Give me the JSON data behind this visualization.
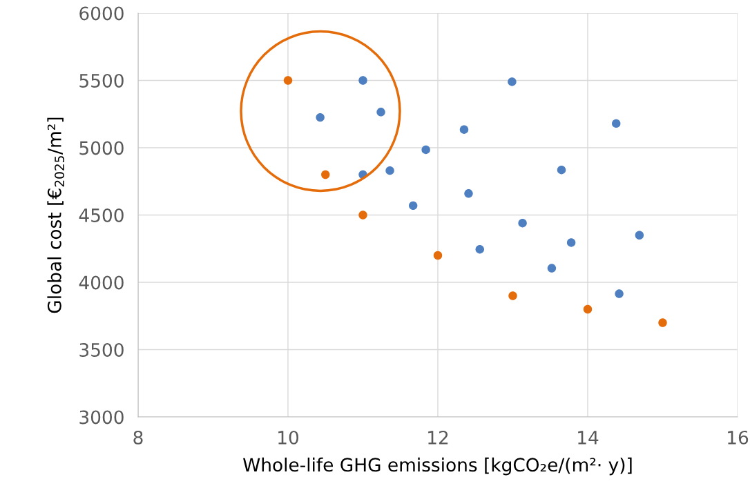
{
  "chart_data": {
    "type": "scatter",
    "xlabel": "Whole-life GHG emissions [kgCO₂e/(m²· y)]",
    "ylabel": "Global cost [€$_{2025}$/m²]",
    "xlim": [
      8,
      16
    ],
    "xticks": [
      8,
      10,
      12,
      14,
      16
    ],
    "ylim": [
      3000,
      6000
    ],
    "yticks": [
      3000,
      3500,
      4000,
      4500,
      5000,
      5500,
      6000
    ],
    "grid": true,
    "legend": false,
    "marker": "circle",
    "series": [
      {
        "color": "#4e7fc0",
        "x": [
          11,
          10.43,
          11.24,
          11.84,
          12.35,
          12.99,
          14.38,
          11,
          11.36,
          11.67,
          12.41,
          13.65,
          13.13,
          12.56,
          13.78,
          14.69,
          13.52,
          14.42
        ],
        "values": [
          5500,
          5225,
          5265,
          4985,
          5135,
          5490,
          5180,
          4800,
          4830,
          4570,
          4660,
          4835,
          4440,
          4245,
          4295,
          4350,
          4105,
          3915
        ]
      },
      {
        "color": "#e46c0a",
        "x": [
          10,
          10.5,
          11,
          12,
          13,
          14,
          15
        ],
        "values": [
          5500,
          4800,
          4500,
          4200,
          3900,
          3800,
          3700
        ]
      }
    ]
  }
}
